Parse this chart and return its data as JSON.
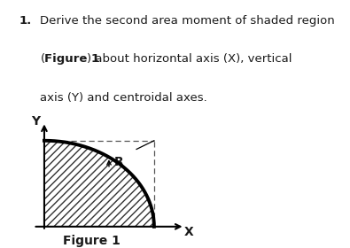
{
  "bg_color": "#ffffff",
  "text_color": "#1a1a1a",
  "fig_width": 3.95,
  "fig_height": 2.8,
  "title_number": "1.",
  "line1": "Derive the second area moment of shaded region",
  "line2_pre": "(",
  "line2_bold": "Figure 1",
  "line2_post": ") about horizontal axis (X), vertical",
  "line3": "axis (Y) and centroidal axes.",
  "figure_caption": "Figure 1",
  "R_label": "R",
  "X_label": "X",
  "Y_label": "Y",
  "curve_lw": 2.8,
  "axis_lw": 1.5,
  "hatch_pattern": "////",
  "dashed_color": "#555555",
  "axis_color": "#000000",
  "curve_color": "#000000",
  "hatch_edgecolor": "#333333"
}
